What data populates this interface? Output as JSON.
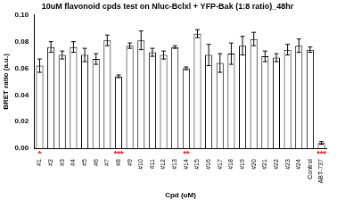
{
  "chart_data": {
    "type": "bar",
    "title": "10uM flavonoid cpds test on Nluc-Bclxl + YFP-Bak (1:8 ratio)_48hr",
    "x_label": "Cpd (uM)",
    "y_label": "BRET ratio (a.u.)",
    "categories": [
      "#1",
      "#2",
      "#3",
      "#4",
      "#5",
      "#6",
      "#7",
      "#8",
      "#9",
      "#10",
      "#11",
      "#12",
      "#13",
      "#14",
      "#15",
      "#16",
      "#17",
      "#18",
      "#19",
      "#20",
      "#21",
      "#22",
      "#23",
      "#24",
      "Control",
      "ABT-737"
    ],
    "values": [
      0.062,
      0.076,
      0.07,
      0.076,
      0.07,
      0.067,
      0.081,
      0.054,
      0.077,
      0.081,
      0.072,
      0.07,
      0.076,
      0.06,
      0.086,
      0.07,
      0.064,
      0.071,
      0.077,
      0.082,
      0.069,
      0.068,
      0.074,
      0.077,
      0.074,
      0.004
    ],
    "errors": [
      0.005,
      0.004,
      0.003,
      0.004,
      0.005,
      0.004,
      0.004,
      0.001,
      0.002,
      0.007,
      0.003,
      0.003,
      0.001,
      0.001,
      0.003,
      0.008,
      0.007,
      0.008,
      0.007,
      0.005,
      0.004,
      0.003,
      0.004,
      0.005,
      0.002,
      0.001
    ],
    "color": "#ffffff",
    "ylim": [
      0,
      0.1
    ],
    "yticks": [
      {
        "value": 0,
        "label": "0.00"
      },
      {
        "value": 0.02,
        "label": "0.02"
      },
      {
        "value": 0.04,
        "label": "0.04"
      },
      {
        "value": 0.06,
        "label": "0.06"
      },
      {
        "value": 0.08,
        "label": "0.08"
      },
      {
        "value": 0.1,
        "label": "0.10"
      }
    ],
    "grid": false,
    "annotations": [
      {
        "category": "#1",
        "text": "*",
        "color": "#ff0000"
      },
      {
        "category": "#8",
        "text": "***",
        "color": "#ff0000"
      },
      {
        "category": "#14",
        "text": "**",
        "color": "#ff0000"
      },
      {
        "category": "ABT-737",
        "text": "***",
        "color": "#ff0000"
      }
    ]
  }
}
